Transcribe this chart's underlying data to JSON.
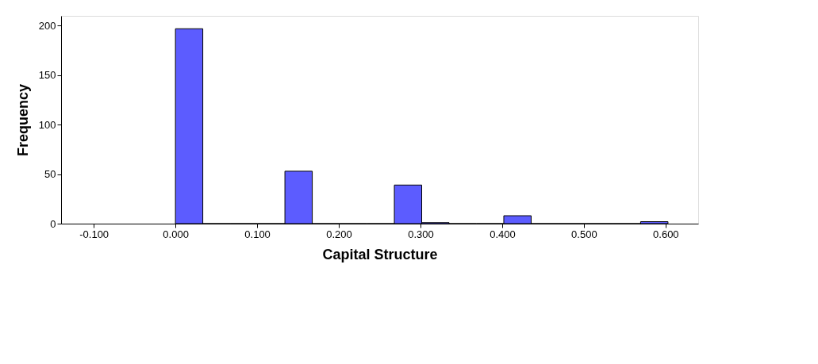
{
  "chart_data": {
    "type": "histogram",
    "xlabel": "Capital Structure",
    "ylabel": "Frequency",
    "bins": [
      0,
      0.0335,
      0.067,
      0.1005,
      0.134,
      0.1675,
      0.201,
      0.2345,
      0.268,
      0.3015,
      0.335,
      0.3685,
      0.402,
      0.4355,
      0.469,
      0.5025,
      0.536,
      0.5695,
      0.603
    ],
    "values": [
      197,
      0,
      0,
      0,
      53,
      0,
      0,
      0,
      39,
      1,
      0,
      0,
      8,
      0,
      0,
      0,
      0,
      2
    ],
    "color": "#5c5cff",
    "xlim": [
      -0.14,
      0.64
    ],
    "ylim": [
      0,
      210
    ],
    "xticks": [
      {
        "value": -0.1,
        "label": "-0.100"
      },
      {
        "value": 0,
        "label": "0.000"
      },
      {
        "value": 0.1,
        "label": "0.100"
      },
      {
        "value": 0.2,
        "label": "0.200"
      },
      {
        "value": 0.3,
        "label": "0.300"
      },
      {
        "value": 0.4,
        "label": "0.400"
      },
      {
        "value": 0.5,
        "label": "0.500"
      },
      {
        "value": 0.6,
        "label": "0.600"
      }
    ],
    "yticks": [
      0,
      50,
      100,
      150,
      200
    ],
    "grid": false
  }
}
